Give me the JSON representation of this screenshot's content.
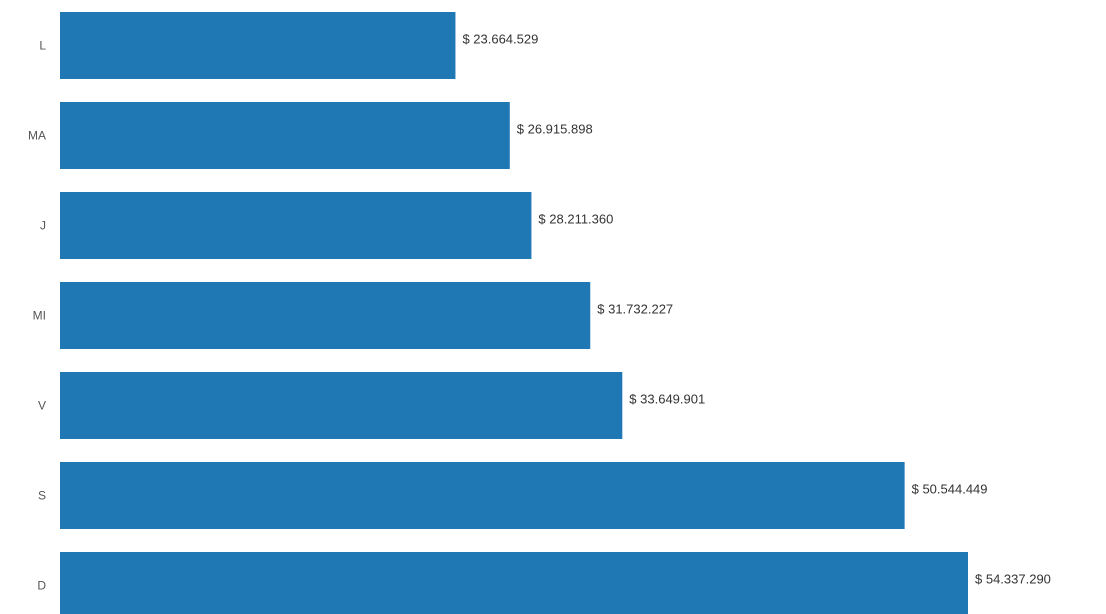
{
  "chart_data": {
    "type": "bar",
    "orientation": "horizontal",
    "categories": [
      "L",
      "MA",
      "J",
      "MI",
      "V",
      "S",
      "D"
    ],
    "values": [
      23664529,
      26915898,
      28211360,
      31732227,
      33649901,
      50544449,
      54337290
    ],
    "value_labels": [
      "$ 23.664.529",
      "$ 26.915.898",
      "$ 28.211.360",
      "$ 31.732.227",
      "$ 33.649.901",
      "$ 50.544.449",
      "$ 54.337.290"
    ],
    "title": "",
    "xlabel": "",
    "ylabel": "",
    "xlim": [
      0,
      54337290
    ],
    "grid": false,
    "legend": "none",
    "bar_color": "#1f77b4"
  }
}
